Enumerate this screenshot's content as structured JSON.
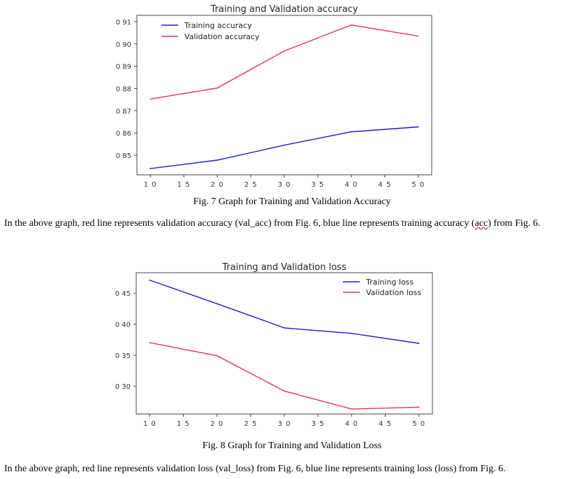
{
  "figures": [
    {
      "caption": "Fig. 7 Graph for Training and Validation Accuracy",
      "paragraph": {
        "before": "In the above graph, red line represents validation accuracy (val_acc) from Fig. 6, blue line represents training accuracy (",
        "flagged": "acc",
        "after": ") from Fig. 6."
      },
      "chart_data": {
        "type": "line",
        "title": "Training and Validation accuracy",
        "xlabel": "",
        "ylabel": "",
        "x": [
          10,
          20,
          30,
          40,
          50
        ],
        "xticks": [
          10,
          15,
          20,
          25,
          30,
          35,
          40,
          45,
          50
        ],
        "yticks": [
          0.85,
          0.86,
          0.87,
          0.88,
          0.89,
          0.9,
          0.91
        ],
        "ytick_labels": [
          "0 85",
          "0 86",
          "0 87",
          "0 88",
          "0 89",
          "0 90",
          "0 91"
        ],
        "xlim": [
          8,
          52
        ],
        "ylim": [
          0.8412,
          0.9128
        ],
        "grid": false,
        "legend": "top-left",
        "series": [
          {
            "name": "Training accuracy",
            "color": "#1a1ad6",
            "values": [
              0.844,
              0.8478,
              0.8545,
              0.8605,
              0.8627
            ]
          },
          {
            "name": "Validation accuracy",
            "color": "#e8334f",
            "values": [
              0.8752,
              0.8802,
              0.8968,
              0.9085,
              0.9035
            ]
          }
        ]
      }
    },
    {
      "caption": "Fig. 8 Graph for Training and Validation Loss",
      "paragraph": {
        "before": "In the above graph, red line represents validation loss (val_loss) from Fig. 6, blue line represents training loss (loss) from Fig. 6.",
        "flagged": "",
        "after": ""
      },
      "chart_data": {
        "type": "line",
        "title": "Training and Validation loss",
        "xlabel": "",
        "ylabel": "",
        "x": [
          10,
          20,
          30,
          40,
          50
        ],
        "xticks": [
          10,
          15,
          20,
          25,
          30,
          35,
          40,
          45,
          50
        ],
        "yticks": [
          0.3,
          0.35,
          0.4,
          0.45
        ],
        "ytick_labels": [
          "0 30",
          "0 35",
          "0 40",
          "0 45"
        ],
        "xlim": [
          8,
          52
        ],
        "ylim": [
          0.255,
          0.483
        ],
        "grid": false,
        "legend": "top-right",
        "series": [
          {
            "name": "Training loss",
            "color": "#1a1ad6",
            "values": [
              0.471,
              0.433,
              0.394,
              0.385,
              0.369
            ]
          },
          {
            "name": "Validation loss",
            "color": "#e8334f",
            "values": [
              0.37,
              0.349,
              0.292,
              0.263,
              0.266
            ]
          }
        ]
      }
    }
  ]
}
